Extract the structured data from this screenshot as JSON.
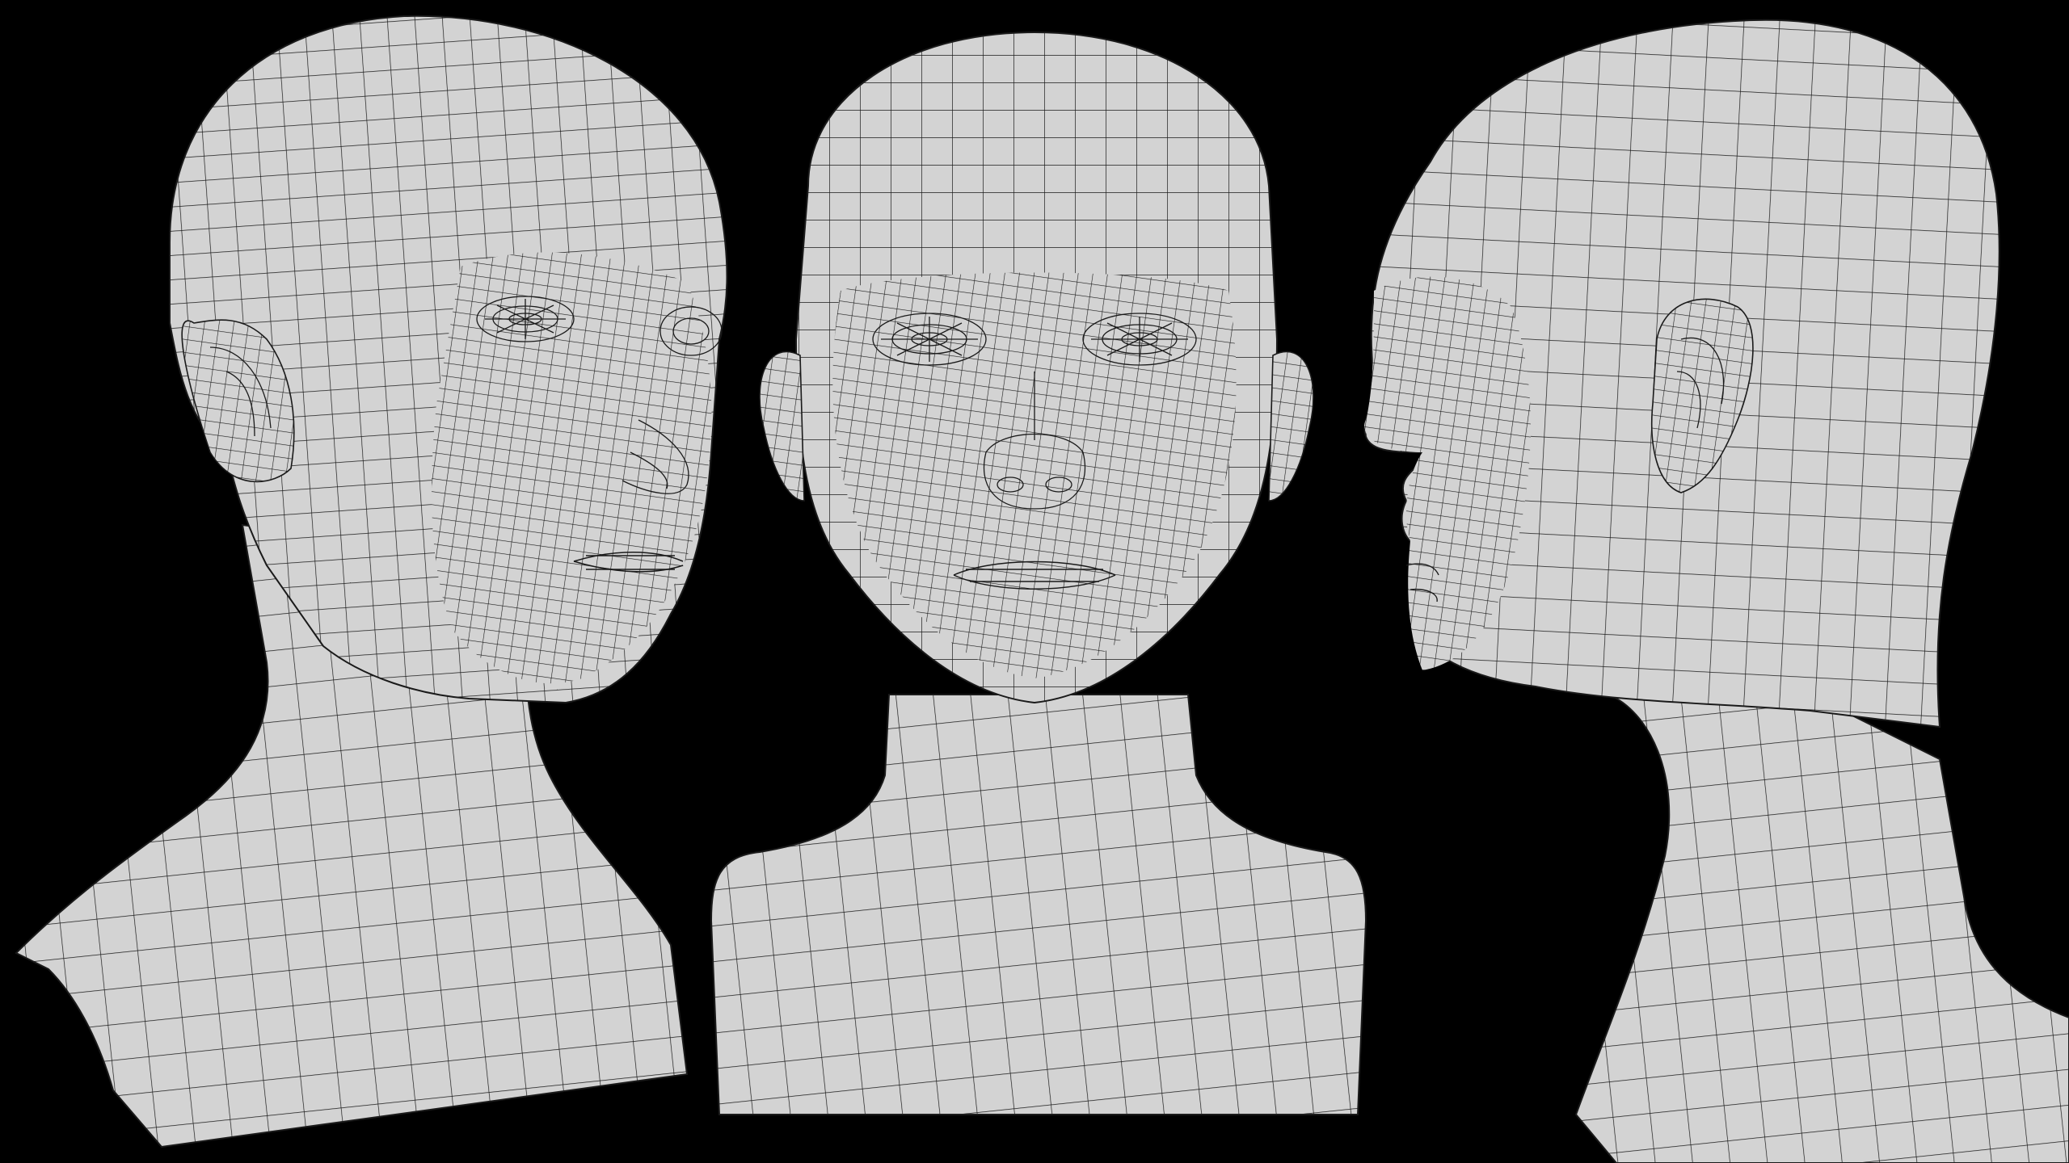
{
  "scene": {
    "background": "#000000",
    "surface_color": "#d3d3d3",
    "wire_color": "#1a1a1a",
    "views": [
      {
        "id": "three-quarter",
        "name": "three-quarter-view"
      },
      {
        "id": "front",
        "name": "front-view"
      },
      {
        "id": "profile",
        "name": "profile-view"
      }
    ]
  }
}
